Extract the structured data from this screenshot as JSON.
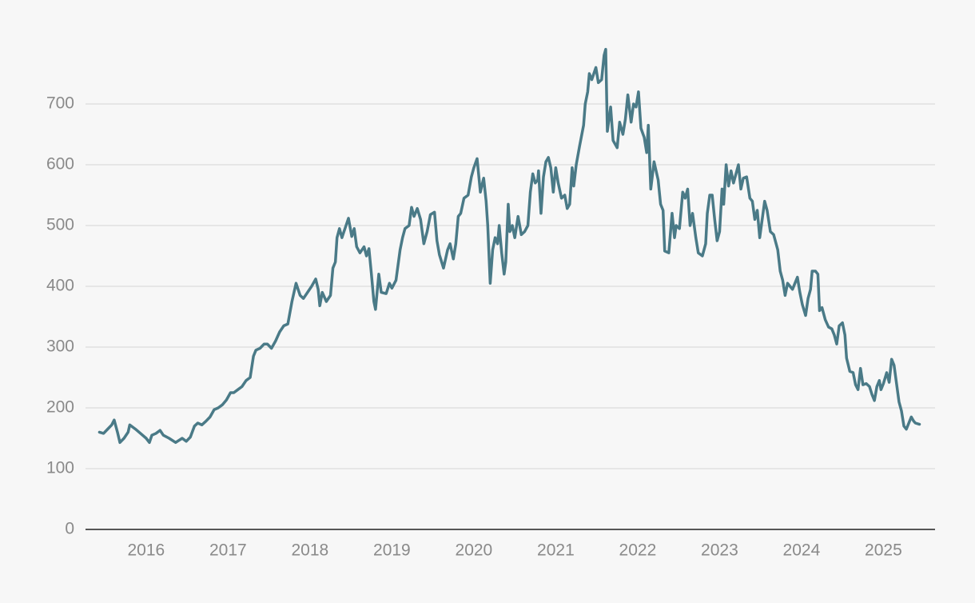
{
  "chart_data": {
    "type": "line",
    "color": "#4a7a87",
    "grid": true,
    "x": [
      2015.43,
      2015.48,
      2015.53,
      2015.58,
      2015.61,
      2015.65,
      2015.68,
      2015.73,
      2015.78,
      2015.8,
      2015.87,
      2015.94,
      2016.0,
      2016.04,
      2016.07,
      2016.12,
      2016.17,
      2016.21,
      2016.28,
      2016.36,
      2016.44,
      2016.49,
      2016.54,
      2016.59,
      2016.63,
      2016.68,
      2016.73,
      2016.78,
      2016.83,
      2016.88,
      2016.93,
      2016.98,
      2017.03,
      2017.07,
      2017.12,
      2017.17,
      2017.22,
      2017.27,
      2017.31,
      2017.34,
      2017.39,
      2017.44,
      2017.48,
      2017.53,
      2017.58,
      2017.63,
      2017.68,
      2017.73,
      2017.78,
      2017.83,
      2017.88,
      2017.92,
      2017.97,
      2018.02,
      2018.07,
      2018.1,
      2018.12,
      2018.15,
      2018.2,
      2018.25,
      2018.28,
      2018.31,
      2018.33,
      2018.36,
      2018.39,
      2018.44,
      2018.47,
      2018.51,
      2018.54,
      2018.57,
      2018.61,
      2018.66,
      2018.69,
      2018.72,
      2018.75,
      2018.78,
      2018.8,
      2018.84,
      2018.87,
      2018.93,
      2018.97,
      2019.0,
      2019.05,
      2019.08,
      2019.1,
      2019.13,
      2019.16,
      2019.21,
      2019.24,
      2019.27,
      2019.31,
      2019.35,
      2019.39,
      2019.43,
      2019.47,
      2019.52,
      2019.55,
      2019.58,
      2019.63,
      2019.68,
      2019.71,
      2019.75,
      2019.78,
      2019.81,
      2019.84,
      2019.88,
      2019.93,
      2019.97,
      2020.0,
      2020.04,
      2020.08,
      2020.12,
      2020.15,
      2020.17,
      2020.2,
      2020.23,
      2020.26,
      2020.29,
      2020.31,
      2020.34,
      2020.37,
      2020.39,
      2020.42,
      2020.44,
      2020.47,
      2020.5,
      2020.54,
      2020.58,
      2020.62,
      2020.66,
      2020.69,
      2020.72,
      2020.75,
      2020.78,
      2020.79,
      2020.82,
      2020.85,
      2020.88,
      2020.91,
      2020.94,
      2020.97,
      2021.0,
      2021.03,
      2021.07,
      2021.11,
      2021.14,
      2021.17,
      2021.2,
      2021.22,
      2021.25,
      2021.29,
      2021.34,
      2021.36,
      2021.39,
      2021.41,
      2021.44,
      2021.49,
      2021.52,
      2021.56,
      2021.59,
      2021.61,
      2021.63,
      2021.67,
      2021.7,
      2021.75,
      2021.78,
      2021.82,
      2021.85,
      2021.88,
      2021.92,
      2021.95,
      2021.98,
      2022.01,
      2022.04,
      2022.08,
      2022.11,
      2022.13,
      2022.16,
      2022.2,
      2022.25,
      2022.28,
      2022.31,
      2022.33,
      2022.38,
      2022.42,
      2022.45,
      2022.47,
      2022.51,
      2022.55,
      2022.58,
      2022.61,
      2022.64,
      2022.67,
      2022.71,
      2022.74,
      2022.79,
      2022.83,
      2022.85,
      2022.88,
      2022.91,
      2022.94,
      2022.97,
      2023.0,
      2023.03,
      2023.05,
      2023.08,
      2023.11,
      2023.14,
      2023.17,
      2023.2,
      2023.23,
      2023.26,
      2023.29,
      2023.33,
      2023.37,
      2023.4,
      2023.43,
      2023.46,
      2023.49,
      2023.52,
      2023.55,
      2023.58,
      2023.62,
      2023.66,
      2023.69,
      2023.71,
      2023.74,
      2023.77,
      2023.8,
      2023.83,
      2023.86,
      2023.89,
      2023.92,
      2023.95,
      2023.98,
      2024.01,
      2024.05,
      2024.08,
      2024.11,
      2024.13,
      2024.17,
      2024.2,
      2024.22,
      2024.25,
      2024.29,
      2024.33,
      2024.37,
      2024.4,
      2024.43,
      2024.46,
      2024.5,
      2024.53,
      2024.55,
      2024.59,
      2024.63,
      2024.66,
      2024.69,
      2024.72,
      2024.75,
      2024.79,
      2024.83,
      2024.86,
      2024.89,
      2024.92,
      2024.95,
      2024.97,
      2025.0,
      2025.04,
      2025.07,
      2025.1,
      2025.13,
      2025.16,
      2025.19,
      2025.22,
      2025.25,
      2025.28,
      2025.31,
      2025.34,
      2025.37,
      2025.39,
      2025.44
    ],
    "values": [
      160,
      158,
      165,
      172,
      180,
      160,
      143,
      150,
      160,
      172,
      165,
      157,
      150,
      143,
      155,
      158,
      163,
      155,
      150,
      143,
      150,
      145,
      152,
      170,
      175,
      172,
      178,
      185,
      197,
      200,
      205,
      213,
      225,
      225,
      230,
      235,
      245,
      250,
      285,
      295,
      298,
      305,
      305,
      298,
      310,
      325,
      335,
      338,
      375,
      405,
      385,
      380,
      390,
      400,
      412,
      395,
      368,
      390,
      375,
      385,
      430,
      440,
      480,
      495,
      480,
      500,
      512,
      482,
      495,
      465,
      455,
      465,
      450,
      462,
      420,
      375,
      362,
      420,
      390,
      388,
      405,
      397,
      410,
      440,
      460,
      480,
      495,
      500,
      530,
      515,
      528,
      510,
      470,
      490,
      518,
      522,
      475,
      452,
      430,
      460,
      470,
      445,
      470,
      515,
      520,
      545,
      550,
      580,
      595,
      610,
      555,
      578,
      540,
      500,
      405,
      460,
      480,
      470,
      500,
      455,
      420,
      440,
      535,
      490,
      500,
      480,
      515,
      485,
      490,
      500,
      555,
      585,
      570,
      575,
      590,
      520,
      580,
      605,
      612,
      595,
      555,
      595,
      570,
      545,
      550,
      528,
      535,
      595,
      565,
      600,
      630,
      665,
      700,
      720,
      750,
      740,
      760,
      735,
      740,
      780,
      790,
      655,
      695,
      640,
      628,
      670,
      650,
      675,
      715,
      670,
      700,
      695,
      720,
      660,
      645,
      620,
      665,
      560,
      605,
      575,
      535,
      525,
      458,
      455,
      520,
      480,
      500,
      495,
      555,
      545,
      560,
      500,
      520,
      480,
      455,
      450,
      470,
      520,
      550,
      550,
      510,
      475,
      490,
      560,
      535,
      600,
      565,
      590,
      570,
      585,
      600,
      560,
      578,
      580,
      545,
      540,
      510,
      525,
      480,
      510,
      540,
      525,
      490,
      485,
      470,
      460,
      425,
      410,
      385,
      405,
      400,
      395,
      405,
      415,
      390,
      370,
      352,
      380,
      395,
      425,
      425,
      420,
      360,
      365,
      345,
      333,
      330,
      320,
      305,
      335,
      340,
      320,
      282,
      260,
      258,
      238,
      230,
      265,
      238,
      240,
      235,
      222,
      212,
      235,
      245,
      230,
      240,
      258,
      242,
      280,
      270,
      240,
      210,
      195,
      170,
      165,
      175,
      185,
      178,
      175,
      173
    ],
    "xlim": [
      2015.26,
      2025.63
    ],
    "xticks": [
      2016,
      2017,
      2018,
      2019,
      2020,
      2021,
      2022,
      2023,
      2024,
      2025
    ],
    "ylim": [
      0,
      800
    ],
    "yticks": [
      0,
      100,
      200,
      300,
      400,
      500,
      600,
      700
    ]
  }
}
